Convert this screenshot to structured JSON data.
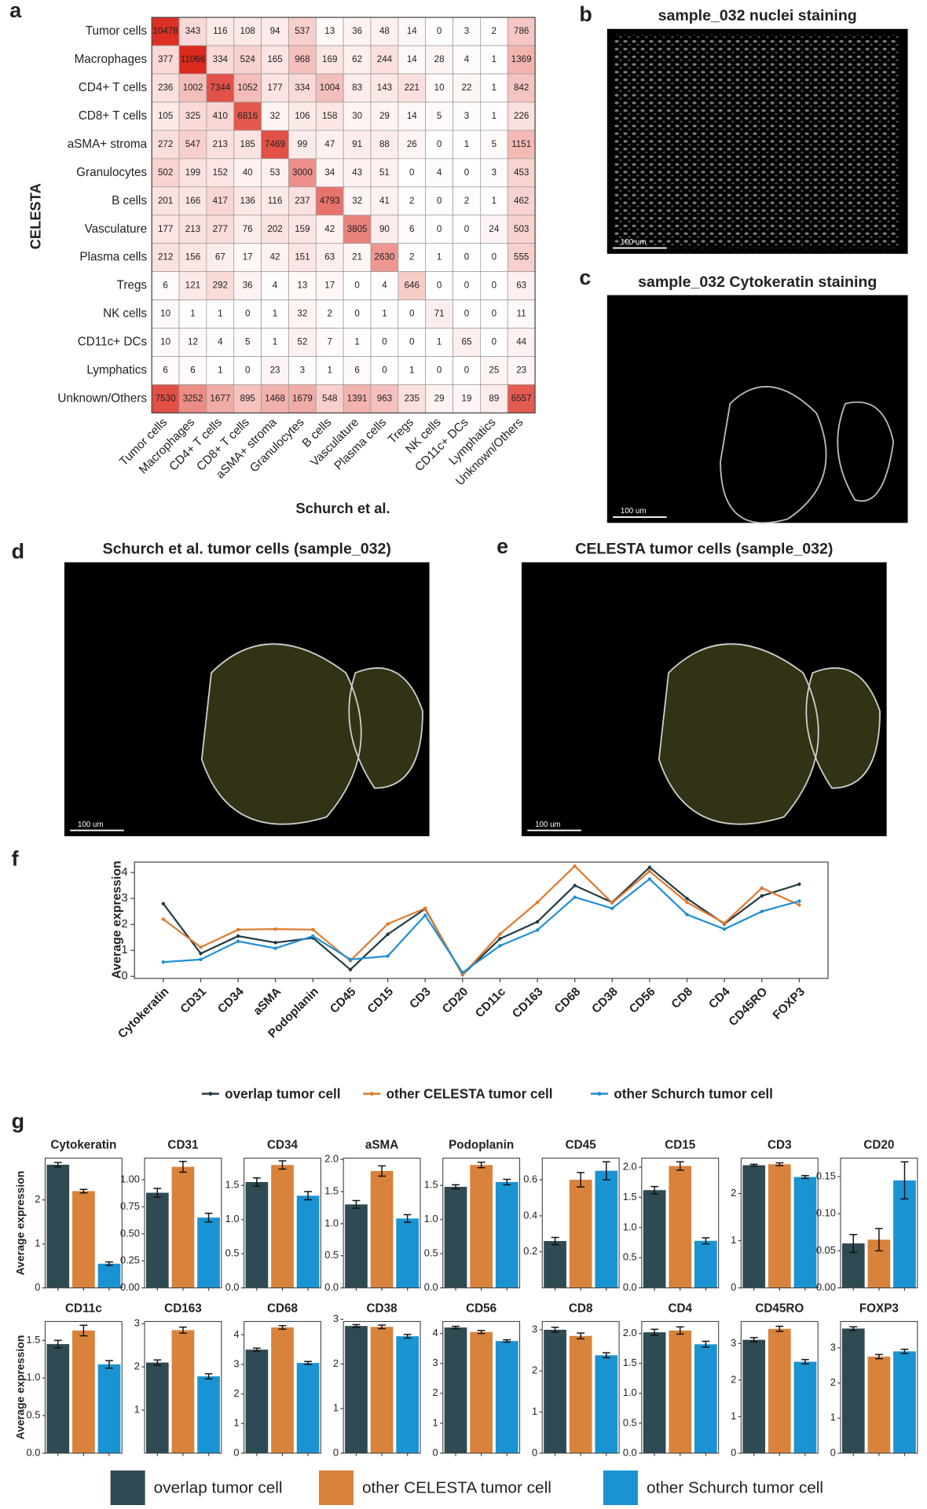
{
  "panel_labels": [
    "a",
    "b",
    "c",
    "d",
    "e",
    "f",
    "g"
  ],
  "images": [
    {
      "title": "sample_032 nuclei staining",
      "scale": "100 um"
    },
    {
      "title": "sample_032 Cytokeratin staining",
      "scale": "100 um"
    },
    {
      "title": "Schurch et al. tumor cells (sample_032)",
      "scale": "100 um"
    },
    {
      "title": "CELESTA tumor cells (sample_032)",
      "scale": "100 um"
    }
  ],
  "chart_data": [
    {
      "type": "heatmap",
      "ylabel": "CELESTA",
      "xlabel": "Schurch et al.",
      "categories": [
        "Tumor cells",
        "Macrophages",
        "CD4+ T cells",
        "CD8+ T cells",
        "aSMA+ stroma",
        "Granulocytes",
        "B cells",
        "Vasculature",
        "Plasma cells",
        "Tregs",
        "NK cells",
        "CD11c+ DCs",
        "Lymphatics",
        "Unknown/Others"
      ],
      "values": [
        [
          10478,
          343,
          116,
          108,
          94,
          537,
          13,
          36,
          48,
          14,
          0,
          3,
          2,
          786
        ],
        [
          377,
          11066,
          334,
          524,
          165,
          968,
          169,
          62,
          244,
          14,
          28,
          4,
          1,
          1369
        ],
        [
          236,
          1002,
          7344,
          1052,
          177,
          334,
          1004,
          83,
          143,
          221,
          10,
          22,
          1,
          842
        ],
        [
          105,
          325,
          410,
          6816,
          32,
          106,
          158,
          30,
          29,
          14,
          5,
          3,
          1,
          226
        ],
        [
          272,
          547,
          213,
          185,
          7469,
          99,
          47,
          91,
          88,
          26,
          0,
          1,
          5,
          1151
        ],
        [
          502,
          199,
          152,
          40,
          53,
          3000,
          34,
          43,
          51,
          0,
          4,
          0,
          3,
          453
        ],
        [
          201,
          166,
          417,
          136,
          116,
          237,
          4793,
          32,
          41,
          2,
          0,
          2,
          1,
          462
        ],
        [
          177,
          213,
          277,
          76,
          202,
          159,
          42,
          3805,
          90,
          6,
          0,
          0,
          24,
          503
        ],
        [
          212,
          156,
          67,
          17,
          42,
          151,
          63,
          21,
          2630,
          2,
          1,
          0,
          0,
          555
        ],
        [
          6,
          121,
          292,
          36,
          4,
          13,
          17,
          0,
          4,
          646,
          0,
          0,
          0,
          63
        ],
        [
          10,
          1,
          1,
          0,
          1,
          32,
          2,
          0,
          1,
          0,
          71,
          0,
          0,
          11
        ],
        [
          10,
          12,
          4,
          5,
          1,
          52,
          7,
          1,
          0,
          0,
          1,
          65,
          0,
          44
        ],
        [
          6,
          6,
          1,
          0,
          23,
          3,
          1,
          6,
          0,
          1,
          0,
          0,
          25,
          23
        ],
        [
          7530,
          3252,
          1677,
          895,
          1468,
          1679,
          548,
          1391,
          963,
          235,
          29,
          19,
          89,
          6557
        ]
      ],
      "color": "#dc2a1e"
    },
    {
      "type": "line",
      "ylabel": "Average expression",
      "categories": [
        "Cytokeratin",
        "CD31",
        "CD34",
        "aSMA",
        "Podoplanin",
        "CD45",
        "CD15",
        "CD3",
        "CD20",
        "CD11c",
        "CD163",
        "CD68",
        "CD38",
        "CD56",
        "CD8",
        "CD4",
        "CD45RO",
        "FOXP3"
      ],
      "series": [
        {
          "name": "overlap tumor cell",
          "color": "#233b43",
          "values": [
            2.8,
            0.88,
            1.55,
            1.3,
            1.48,
            0.26,
            1.62,
            2.6,
            0.06,
            1.45,
            2.1,
            3.5,
            2.85,
            4.2,
            3.0,
            2.02,
            3.1,
            3.55
          ]
        },
        {
          "name": "other CELESTA tumor cell",
          "color": "#e0792f",
          "values": [
            2.2,
            1.12,
            1.8,
            1.82,
            1.8,
            0.6,
            2.02,
            2.62,
            0.065,
            1.63,
            2.85,
            4.25,
            2.83,
            4.05,
            2.85,
            2.05,
            3.4,
            2.75
          ]
        },
        {
          "name": "other Schurch tumor cell",
          "color": "#1e8fd5",
          "values": [
            0.55,
            0.65,
            1.35,
            1.08,
            1.55,
            0.65,
            0.78,
            2.35,
            0.145,
            1.18,
            1.78,
            3.05,
            2.62,
            3.75,
            2.38,
            1.82,
            2.5,
            2.9
          ]
        }
      ],
      "ylim": [
        -0.08,
        4.4
      ],
      "yticks": [
        0,
        1,
        2,
        3,
        4
      ]
    },
    {
      "type": "bar_grid",
      "ylabel": "Average expression",
      "series": [
        {
          "name": "overlap tumor cell",
          "color": "#2e4a52"
        },
        {
          "name": "other CELESTA tumor cell",
          "color": "#d9823b"
        },
        {
          "name": "other Schurch tumor cell",
          "color": "#1a93d2"
        }
      ],
      "panels": [
        {
          "title": "Cytokeratin",
          "values": [
            2.8,
            2.2,
            0.55
          ],
          "errors": [
            0.05,
            0.04,
            0.04
          ],
          "ylim": [
            0,
            2.95
          ],
          "yticks": [
            0,
            1,
            2
          ]
        },
        {
          "title": "CD31",
          "values": [
            0.88,
            1.12,
            0.65
          ],
          "errors": [
            0.04,
            0.05,
            0.04
          ],
          "ylim": [
            0,
            1.2
          ],
          "yticks": [
            {
              "value": 0,
              "label": "0.00"
            },
            {
              "value": 0.25,
              "label": "0.25"
            },
            {
              "value": 0.5,
              "label": "0.50"
            },
            {
              "value": 0.75,
              "label": "0.75"
            },
            {
              "value": 1,
              "label": "1.00"
            }
          ]
        },
        {
          "title": "CD34",
          "values": [
            1.55,
            1.8,
            1.35
          ],
          "errors": [
            0.06,
            0.06,
            0.06
          ],
          "ylim": [
            0,
            1.9
          ],
          "yticks": [
            {
              "value": 0,
              "label": "0.0"
            },
            {
              "value": 0.5,
              "label": "0.5"
            },
            {
              "value": 1,
              "label": "1.0"
            },
            {
              "value": 1.5,
              "label": "1.5"
            }
          ]
        },
        {
          "title": "aSMA",
          "values": [
            1.3,
            1.82,
            1.08
          ],
          "errors": [
            0.06,
            0.08,
            0.06
          ],
          "ylim": [
            0,
            2.02
          ],
          "yticks": [
            {
              "value": 0,
              "label": "0.0"
            },
            {
              "value": 0.5,
              "label": "0.5"
            },
            {
              "value": 1,
              "label": "1.0"
            },
            {
              "value": 1.5,
              "label": "1.5"
            },
            {
              "value": 2,
              "label": "2.0"
            }
          ]
        },
        {
          "title": "Podoplanin",
          "values": [
            1.48,
            1.8,
            1.55
          ],
          "errors": [
            0.03,
            0.04,
            0.04
          ],
          "ylim": [
            0,
            1.9
          ],
          "yticks": [
            {
              "value": 0,
              "label": "0.0"
            },
            {
              "value": 0.5,
              "label": "0.5"
            },
            {
              "value": 1,
              "label": "1.0"
            },
            {
              "value": 1.5,
              "label": "1.5"
            }
          ]
        },
        {
          "title": "CD45",
          "values": [
            0.26,
            0.6,
            0.65
          ],
          "errors": [
            0.02,
            0.04,
            0.05
          ],
          "ylim": [
            0,
            0.72
          ],
          "yticks": [
            0.2,
            0.4,
            0.6
          ]
        },
        {
          "title": "CD15",
          "values": [
            1.62,
            2.02,
            0.78
          ],
          "errors": [
            0.06,
            0.07,
            0.05
          ],
          "ylim": [
            0,
            2.15
          ],
          "yticks": [
            {
              "value": 0,
              "label": "0.0"
            },
            {
              "value": 0.5,
              "label": "0.5"
            },
            {
              "value": 1,
              "label": "1.0"
            },
            {
              "value": 1.5,
              "label": "1.5"
            },
            {
              "value": 2,
              "label": "2.0"
            }
          ]
        },
        {
          "title": "CD3",
          "values": [
            2.6,
            2.62,
            2.35
          ],
          "errors": [
            0.02,
            0.03,
            0.03
          ],
          "ylim": [
            0,
            2.75
          ],
          "yticks": [
            0,
            1,
            2
          ]
        },
        {
          "title": "CD20",
          "values": [
            0.06,
            0.065,
            0.145
          ],
          "errors": [
            0.012,
            0.015,
            0.025
          ],
          "ylim": [
            0,
            0.175
          ],
          "yticks": [
            {
              "value": 0,
              "label": "0.00"
            },
            {
              "value": 0.05,
              "label": "0.05"
            },
            {
              "value": 0.1,
              "label": "0.10"
            },
            {
              "value": 0.15,
              "label": "0.15"
            }
          ]
        },
        {
          "title": "CD11c",
          "values": [
            1.45,
            1.63,
            1.18
          ],
          "errors": [
            0.05,
            0.07,
            0.05
          ],
          "ylim": [
            0,
            1.75
          ],
          "yticks": [
            {
              "value": 0,
              "label": "0.0"
            },
            {
              "value": 0.5,
              "label": "0.5"
            },
            {
              "value": 1,
              "label": "1.0"
            },
            {
              "value": 1.5,
              "label": "1.5"
            }
          ]
        },
        {
          "title": "CD163",
          "values": [
            2.1,
            2.85,
            1.78
          ],
          "errors": [
            0.06,
            0.07,
            0.06
          ],
          "ylim": [
            0,
            3.05
          ],
          "yticks": [
            1,
            2,
            3
          ]
        },
        {
          "title": "CD68",
          "values": [
            3.5,
            4.25,
            3.05
          ],
          "errors": [
            0.05,
            0.06,
            0.05
          ],
          "ylim": [
            0,
            4.45
          ],
          "yticks": [
            0,
            1,
            2,
            3,
            4
          ]
        },
        {
          "title": "CD38",
          "values": [
            2.85,
            2.83,
            2.62
          ],
          "errors": [
            0.03,
            0.04,
            0.04
          ],
          "ylim": [
            0,
            2.95
          ],
          "yticks": [
            0,
            1,
            2,
            3
          ]
        },
        {
          "title": "CD56",
          "values": [
            4.2,
            4.05,
            3.75
          ],
          "errors": [
            0.04,
            0.05,
            0.04
          ],
          "ylim": [
            0,
            4.4
          ],
          "yticks": [
            0,
            1,
            2,
            3,
            4
          ]
        },
        {
          "title": "CD8",
          "values": [
            3.0,
            2.85,
            2.38
          ],
          "errors": [
            0.06,
            0.07,
            0.06
          ],
          "ylim": [
            0,
            3.2
          ],
          "yticks": [
            0,
            1,
            2,
            3
          ]
        },
        {
          "title": "CD4",
          "values": [
            2.02,
            2.05,
            1.82
          ],
          "errors": [
            0.05,
            0.06,
            0.05
          ],
          "ylim": [
            0,
            2.2
          ],
          "yticks": [
            {
              "value": 0,
              "label": "0.0"
            },
            {
              "value": 0.5,
              "label": "0.5"
            },
            {
              "value": 1,
              "label": "1.0"
            },
            {
              "value": 1.5,
              "label": "1.5"
            },
            {
              "value": 2,
              "label": "2.0"
            }
          ]
        },
        {
          "title": "CD45RO",
          "values": [
            3.1,
            3.4,
            2.5
          ],
          "errors": [
            0.06,
            0.07,
            0.06
          ],
          "ylim": [
            0,
            3.6
          ],
          "yticks": [
            0,
            1,
            2,
            3
          ]
        },
        {
          "title": "FOXP3",
          "values": [
            3.55,
            2.75,
            2.9
          ],
          "errors": [
            0.05,
            0.06,
            0.06
          ],
          "ylim": [
            0,
            3.75
          ],
          "yticks": [
            0,
            1,
            2,
            3
          ]
        }
      ]
    }
  ]
}
